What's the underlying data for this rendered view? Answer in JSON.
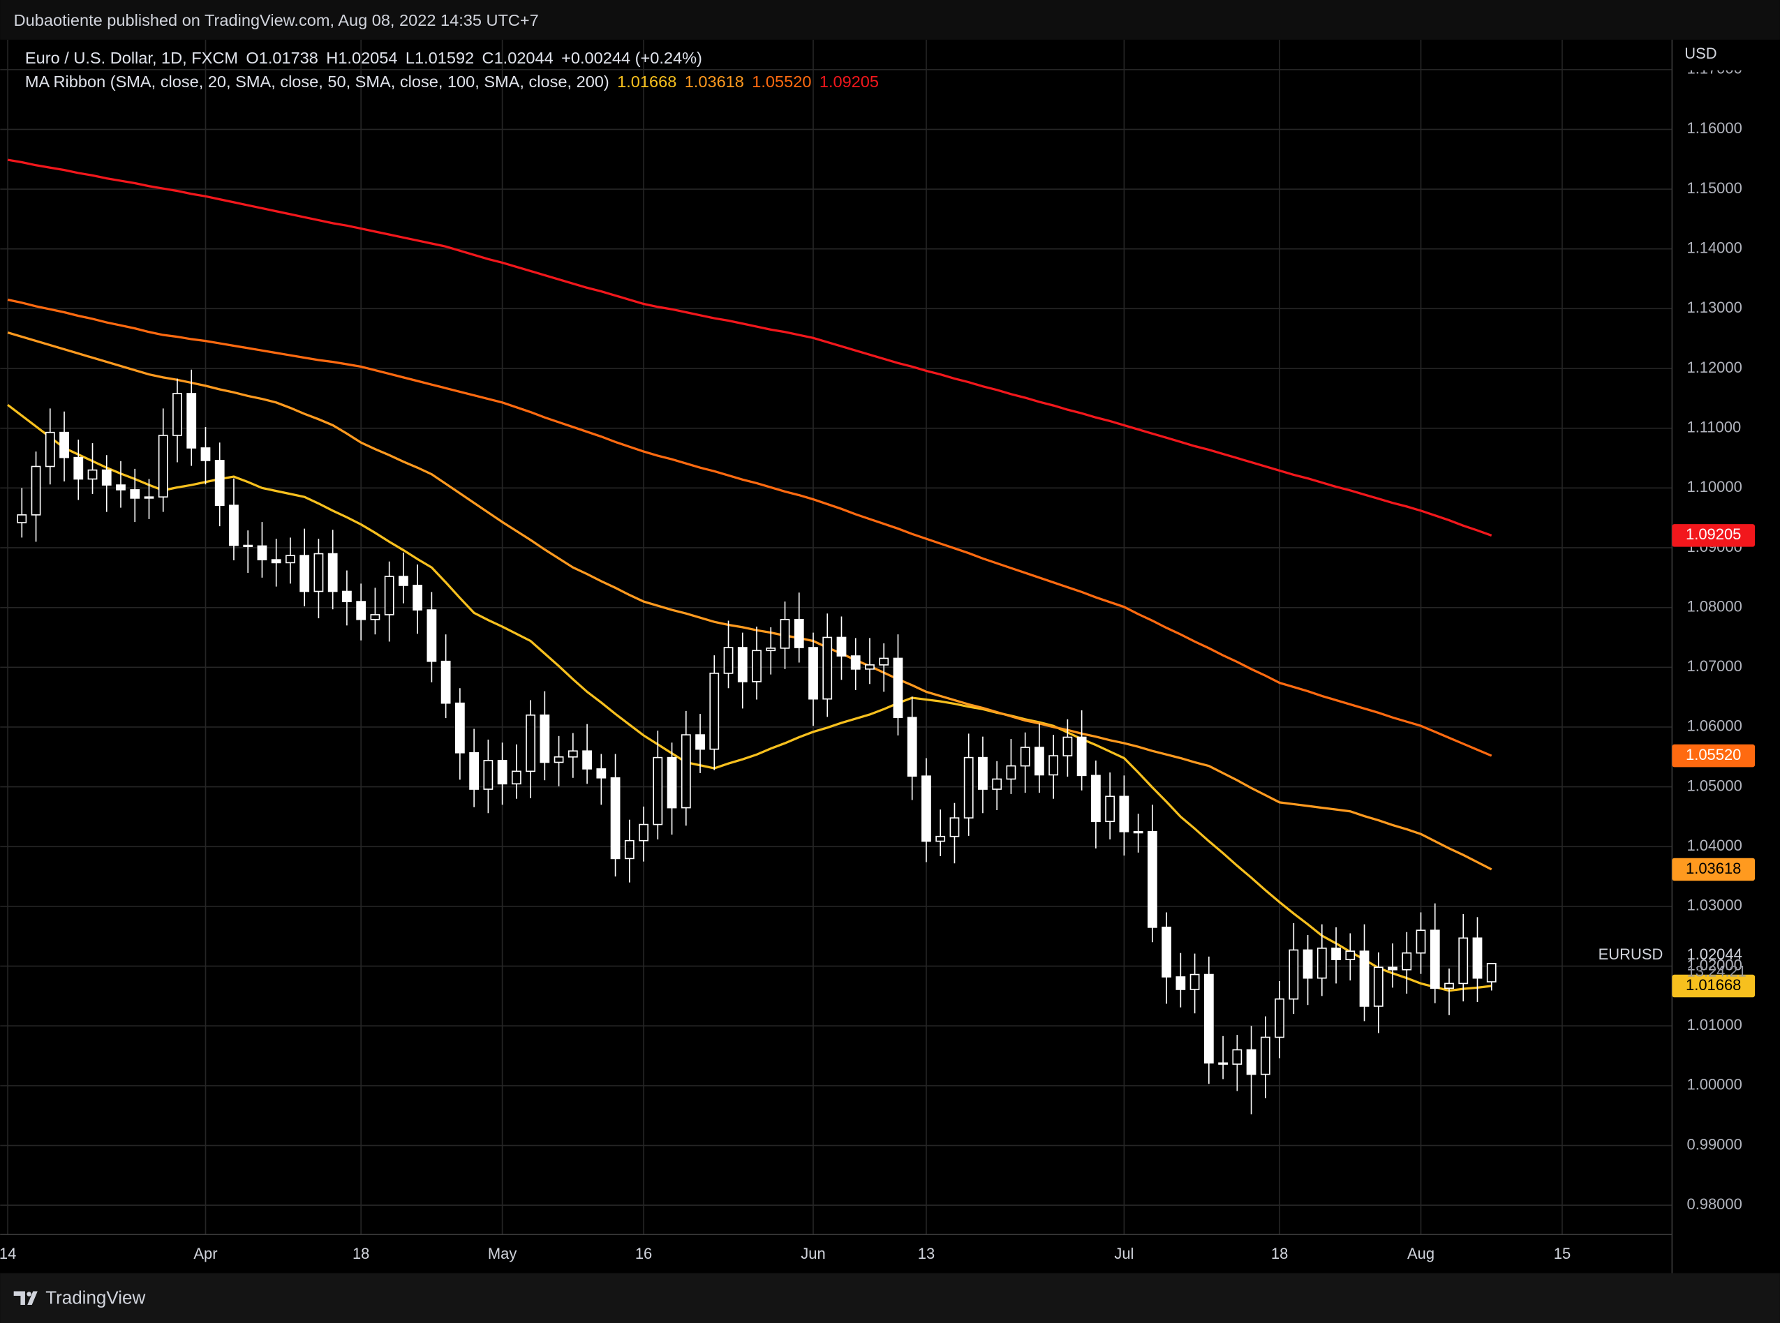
{
  "header": {
    "published": "Dubaotiente published on TradingView.com, Aug 08, 2022 14:35 UTC+7",
    "symbol": "Euro / U.S. Dollar, 1D, FXCM",
    "ohlc": [
      "O1.01738",
      "H1.02054",
      "L1.01592",
      "C1.02044",
      "+0.00244 (+0.24%)"
    ],
    "ma_ribbon": "MA Ribbon (SMA, close, 20, SMA, close, 50, SMA, close, 100, SMA, close, 200)",
    "ma_values": [
      "1.01668",
      "1.03618",
      "1.05520",
      "1.09205"
    ],
    "currency": "USD",
    "symbol_code": "EURUSD",
    "last_price": "1.02044",
    "countdown": "13:24:21",
    "brand": "TradingView"
  },
  "chart_data": {
    "type": "candlestick",
    "categories": [
      "14",
      null,
      null,
      null,
      null,
      null,
      null,
      null,
      null,
      null,
      null,
      null,
      null,
      null,
      "Apr",
      null,
      null,
      null,
      null,
      null,
      null,
      null,
      null,
      null,
      null,
      "18",
      null,
      null,
      null,
      null,
      null,
      null,
      null,
      null,
      null,
      "May",
      null,
      null,
      null,
      null,
      null,
      null,
      null,
      null,
      null,
      "16",
      null,
      null,
      null,
      null,
      null,
      null,
      null,
      null,
      null,
      null,
      null,
      "Jun",
      null,
      null,
      null,
      null,
      null,
      null,
      null,
      "13",
      null,
      null,
      null,
      null,
      null,
      null,
      null,
      null,
      null,
      null,
      null,
      null,
      null,
      "Jul",
      null,
      null,
      null,
      null,
      null,
      null,
      null,
      null,
      null,
      null,
      "18",
      null,
      null,
      null,
      null,
      null,
      null,
      null,
      null,
      null,
      "Aug",
      null,
      null,
      null,
      null,
      null,
      null,
      null,
      null,
      null,
      "15",
      null,
      null,
      null,
      null,
      null,
      null,
      null
    ],
    "open": [
      null,
      1.0942,
      1.0955,
      1.1036,
      1.1093,
      1.1051,
      1.1015,
      1.103,
      1.1005,
      1.0997,
      1.0983,
      1.0985,
      1.1088,
      1.1158,
      1.1067,
      1.1046,
      1.0971,
      1.0904,
      1.0903,
      1.088,
      1.0875,
      1.0887,
      1.0827,
      1.089,
      1.0827,
      1.081,
      1.078,
      1.0788,
      1.0852,
      1.0837,
      1.0796,
      1.071,
      1.064,
      1.0557,
      1.0496,
      1.0544,
      1.0505,
      1.0526,
      1.062,
      1.0541,
      1.055,
      1.056,
      1.053,
      1.0515,
      1.038,
      1.041,
      1.0437,
      1.0549,
      1.0465,
      1.0587,
      1.0563,
      1.069,
      1.0733,
      1.0676,
      1.0728,
      1.0732,
      1.078,
      1.0733,
      1.0647,
      1.075,
      1.0719,
      1.0697,
      1.0704,
      1.0715,
      1.0616,
      1.0518,
      1.0409,
      1.0417,
      1.0448,
      1.0549,
      1.0496,
      1.0513,
      1.0535,
      1.0566,
      1.052,
      1.0552,
      1.0583,
      1.0519,
      1.0442,
      1.0484,
      1.0425,
      1.0425,
      1.0265,
      1.0182,
      1.0161,
      1.0186,
      1.0038,
      1.0036,
      1.006,
      1.0019,
      1.0081,
      1.0145,
      1.0227,
      1.018,
      1.023,
      1.0211,
      1.0225,
      1.0133,
      1.0198,
      1.0194,
      1.0222,
      1.026,
      1.0163,
      1.0171,
      1.0247,
      1.01738,
      null,
      null,
      null,
      null,
      null,
      null,
      null,
      null,
      null,
      null,
      null,
      null
    ],
    "high": [
      null,
      1.1,
      1.1061,
      1.1133,
      1.1128,
      1.1081,
      1.1075,
      1.1055,
      1.1045,
      1.1032,
      1.1015,
      1.1133,
      1.1183,
      1.1198,
      1.1102,
      1.1076,
      1.1016,
      1.0929,
      1.0943,
      1.0915,
      1.0917,
      1.0932,
      1.0915,
      1.093,
      1.0862,
      1.084,
      1.0833,
      1.0877,
      1.0892,
      1.0872,
      1.0826,
      1.0755,
      1.0665,
      1.0597,
      1.0579,
      1.0574,
      1.0571,
      1.0645,
      1.066,
      1.0585,
      1.059,
      1.0605,
      1.0555,
      1.0555,
      1.0445,
      1.0467,
      1.0594,
      1.0574,
      1.0627,
      1.0622,
      1.072,
      1.0778,
      1.0758,
      1.0768,
      1.0767,
      1.081,
      1.0825,
      1.0758,
      1.079,
      1.0785,
      1.0749,
      1.0749,
      1.074,
      1.0755,
      1.0651,
      1.0548,
      1.0462,
      1.0473,
      1.0589,
      1.0584,
      1.0543,
      1.058,
      1.0591,
      1.0606,
      1.0587,
      1.0613,
      1.0628,
      1.0544,
      1.0524,
      1.0519,
      1.0455,
      1.047,
      1.029,
      1.0222,
      1.0221,
      1.0216,
      1.0083,
      1.0085,
      1.01,
      1.0116,
      1.0175,
      1.0272,
      1.0252,
      1.027,
      1.0265,
      1.0255,
      1.027,
      1.0223,
      1.0238,
      1.0257,
      1.029,
      1.0305,
      1.0196,
      1.0287,
      1.0282,
      1.02054,
      null,
      null,
      null,
      null,
      null,
      null,
      null,
      null,
      null,
      null,
      null,
      null
    ],
    "low": [
      null,
      1.0917,
      1.091,
      1.1006,
      1.1011,
      1.098,
      1.099,
      1.096,
      1.0967,
      1.0943,
      1.0948,
      1.096,
      1.1043,
      1.1037,
      1.1006,
      1.0936,
      1.0879,
      1.0858,
      1.085,
      1.0835,
      1.084,
      1.0802,
      1.0782,
      1.0797,
      1.077,
      1.0745,
      1.0755,
      1.0743,
      1.0807,
      1.0756,
      1.0675,
      1.0615,
      1.0512,
      1.0466,
      1.0456,
      1.047,
      1.048,
      1.0481,
      1.0511,
      1.0501,
      1.0515,
      1.0505,
      1.047,
      1.035,
      1.034,
      1.0375,
      1.0412,
      1.042,
      1.0435,
      1.0523,
      1.0528,
      1.0665,
      1.0631,
      1.0646,
      1.0688,
      1.0697,
      1.0708,
      1.0602,
      1.0617,
      1.0679,
      1.0662,
      1.0672,
      1.0659,
      1.0586,
      1.0478,
      1.0374,
      1.0384,
      1.0372,
      1.0418,
      1.0456,
      1.0461,
      1.0488,
      1.049,
      1.049,
      1.048,
      1.0517,
      1.0494,
      1.0397,
      1.0412,
      1.0385,
      1.039,
      1.024,
      1.0137,
      1.0131,
      1.0121,
      1.0003,
      1.0011,
      0.9991,
      0.9952,
      0.9979,
      1.0046,
      1.012,
      1.0135,
      1.015,
      1.0171,
      1.0176,
      1.0108,
      1.0088,
      1.0164,
      1.0154,
      1.0187,
      1.0138,
      1.0118,
      1.0141,
      1.014,
      1.01592,
      null,
      null,
      null,
      null,
      null,
      null,
      null,
      null,
      null,
      null,
      null,
      null
    ],
    "close": [
      null,
      1.0955,
      1.1036,
      1.1093,
      1.1051,
      1.1015,
      1.103,
      1.1005,
      1.0997,
      1.0983,
      1.0985,
      1.1088,
      1.1158,
      1.1067,
      1.1046,
      1.0971,
      1.0904,
      1.0903,
      1.088,
      1.0875,
      1.0887,
      1.0827,
      1.089,
      1.0827,
      1.081,
      1.078,
      1.0788,
      1.0852,
      1.0837,
      1.0796,
      1.071,
      1.064,
      1.0557,
      1.0496,
      1.0544,
      1.0505,
      1.0526,
      1.062,
      1.0541,
      1.055,
      1.056,
      1.053,
      1.0515,
      1.038,
      1.041,
      1.0437,
      1.0549,
      1.0465,
      1.0587,
      1.0563,
      1.069,
      1.0733,
      1.0676,
      1.0728,
      1.0732,
      1.078,
      1.0733,
      1.0647,
      1.075,
      1.0719,
      1.0697,
      1.0704,
      1.0715,
      1.0616,
      1.0518,
      1.0409,
      1.0417,
      1.0448,
      1.0549,
      1.0496,
      1.0513,
      1.0535,
      1.0566,
      1.052,
      1.0552,
      1.0583,
      1.0519,
      1.0442,
      1.0484,
      1.0425,
      1.0425,
      1.0265,
      1.0182,
      1.0161,
      1.0186,
      1.0038,
      1.0036,
      1.006,
      1.0019,
      1.0081,
      1.0145,
      1.0227,
      1.018,
      1.023,
      1.0211,
      1.0225,
      1.0133,
      1.0198,
      1.0194,
      1.0222,
      1.026,
      1.0163,
      1.0171,
      1.0247,
      1.018,
      1.02044,
      null,
      null,
      null,
      null,
      null,
      null,
      null,
      null,
      null,
      null,
      null,
      null
    ],
    "candle_colors": {
      "up_fill": "#000000",
      "down_fill": "#ffffff",
      "outline": "#ffffff"
    },
    "series": [
      {
        "color": "#f7c01e",
        "label_color": "#000000",
        "values": [
          1.1139,
          1.1121,
          1.1103,
          1.1085,
          1.1067,
          1.1056,
          1.1045,
          1.1034,
          1.1024,
          1.1015,
          1.1005,
          1.0996,
          1.1001,
          1.1005,
          1.101,
          1.1015,
          1.1019,
          1.101,
          1.1,
          1.0995,
          1.099,
          1.0985,
          1.0974,
          1.0962,
          1.0951,
          1.0939,
          1.0925,
          1.091,
          1.0896,
          1.0881,
          1.0867,
          1.0842,
          1.0816,
          1.0791,
          1.0779,
          1.0768,
          1.0756,
          1.0744,
          1.0723,
          1.0702,
          1.068,
          1.0659,
          1.0641,
          1.0622,
          1.0604,
          1.0586,
          1.0571,
          1.0556,
          1.0541,
          1.0536,
          1.0531,
          1.0539,
          1.0546,
          1.0554,
          1.0564,
          1.0573,
          1.0583,
          1.0592,
          1.0599,
          1.0607,
          1.0614,
          1.0621,
          1.063,
          1.064,
          1.0649,
          1.0646,
          1.0643,
          1.0639,
          1.0634,
          1.063,
          1.0624,
          1.0619,
          1.0613,
          1.0608,
          1.0602,
          1.0591,
          1.058,
          1.057,
          1.0559,
          1.0548,
          1.0524,
          1.0499,
          1.0475,
          1.045,
          1.043,
          1.0409,
          1.0389,
          1.0368,
          1.0348,
          1.0327,
          1.0307,
          1.0288,
          1.027,
          1.0251,
          1.0238,
          1.0224,
          1.0211,
          1.0197,
          1.0188,
          1.018,
          1.0171,
          1.0165,
          1.0159,
          1.0162,
          1.0164,
          1.01668,
          null,
          null,
          null,
          null,
          null,
          null,
          null,
          null,
          null,
          null,
          null,
          null
        ]
      },
      {
        "color": "#ff9a1f",
        "label_color": "#000000",
        "values": [
          1.126,
          1.1253,
          1.1246,
          1.1239,
          1.1232,
          1.1225,
          1.1218,
          1.1211,
          1.1204,
          1.1197,
          1.119,
          1.1185,
          1.1181,
          1.1176,
          1.1171,
          1.1165,
          1.116,
          1.1154,
          1.1149,
          1.1143,
          1.1134,
          1.1124,
          1.1115,
          1.1105,
          1.1091,
          1.1076,
          1.1065,
          1.1055,
          1.1044,
          1.1034,
          1.1023,
          1.1007,
          1.0991,
          1.0975,
          1.0959,
          1.0943,
          1.0928,
          1.0913,
          1.0897,
          1.0882,
          1.0867,
          1.0856,
          1.0844,
          1.0833,
          1.0821,
          1.081,
          1.0803,
          1.0796,
          1.079,
          1.0783,
          1.0776,
          1.0771,
          1.0767,
          1.0762,
          1.0758,
          1.0753,
          1.0749,
          1.0744,
          1.0733,
          1.0723,
          1.0712,
          1.0702,
          1.0691,
          1.068,
          1.067,
          1.0659,
          1.0652,
          1.0645,
          1.0638,
          1.0632,
          1.0625,
          1.0618,
          1.0611,
          1.0606,
          1.06,
          1.0595,
          1.0589,
          1.0584,
          1.0578,
          1.0573,
          1.0567,
          1.056,
          1.0554,
          1.0548,
          1.0541,
          1.0535,
          1.0523,
          1.0511,
          1.0498,
          1.0486,
          1.0474,
          1.0471,
          1.0468,
          1.0465,
          1.0462,
          1.0459,
          1.0451,
          1.0444,
          1.0436,
          1.0429,
          1.0421,
          1.0409,
          1.0397,
          1.0386,
          1.0374,
          1.03618,
          null,
          null,
          null,
          null,
          null,
          null,
          null,
          null,
          null,
          null,
          null,
          null
        ]
      },
      {
        "color": "#ff6a10",
        "label_color": "#ffffff",
        "values": [
          1.1315,
          1.131,
          1.1304,
          1.1299,
          1.1294,
          1.1288,
          1.1283,
          1.1277,
          1.1272,
          1.1267,
          1.1261,
          1.1256,
          1.1253,
          1.1249,
          1.1246,
          1.1242,
          1.1238,
          1.1234,
          1.123,
          1.1226,
          1.1222,
          1.1218,
          1.1214,
          1.1211,
          1.1207,
          1.1203,
          1.1197,
          1.1191,
          1.1185,
          1.1179,
          1.1173,
          1.1167,
          1.1161,
          1.1155,
          1.1149,
          1.1143,
          1.1135,
          1.1127,
          1.1118,
          1.111,
          1.1102,
          1.1094,
          1.1086,
          1.1077,
          1.1069,
          1.1061,
          1.1054,
          1.1048,
          1.1041,
          1.1034,
          1.1028,
          1.1021,
          1.1014,
          1.1008,
          1.1001,
          1.0994,
          1.0988,
          1.0981,
          1.0973,
          1.0965,
          1.0956,
          1.0948,
          1.094,
          1.0932,
          1.0923,
          1.0915,
          1.0907,
          1.0899,
          1.0891,
          1.0882,
          1.0874,
          1.0866,
          1.0858,
          1.085,
          1.0842,
          1.0834,
          1.0826,
          1.0817,
          1.0809,
          1.0801,
          1.0789,
          1.0778,
          1.0766,
          1.0755,
          1.0743,
          1.0732,
          1.072,
          1.0709,
          1.0697,
          1.0686,
          1.0674,
          1.0667,
          1.066,
          1.0652,
          1.0645,
          1.0638,
          1.0631,
          1.0624,
          1.0616,
          1.0609,
          1.0602,
          1.0592,
          1.0582,
          1.0572,
          1.0562,
          1.0552,
          null,
          null,
          null,
          null,
          null,
          null,
          null,
          null,
          null,
          null,
          null,
          null
        ]
      },
      {
        "color": "#f2171c",
        "label_color": "#ffffff",
        "values": [
          1.1549,
          1.1545,
          1.154,
          1.1536,
          1.1532,
          1.1527,
          1.1523,
          1.1518,
          1.1514,
          1.151,
          1.1505,
          1.1501,
          1.1497,
          1.1492,
          1.1488,
          1.1483,
          1.1478,
          1.1473,
          1.1468,
          1.1463,
          1.1458,
          1.1453,
          1.1448,
          1.1443,
          1.1439,
          1.1434,
          1.1429,
          1.1424,
          1.1419,
          1.1414,
          1.1409,
          1.1404,
          1.1397,
          1.139,
          1.1383,
          1.1377,
          1.137,
          1.1363,
          1.1356,
          1.1349,
          1.1342,
          1.1335,
          1.1329,
          1.1322,
          1.1315,
          1.1308,
          1.1303,
          1.1299,
          1.1294,
          1.1289,
          1.1284,
          1.128,
          1.1275,
          1.127,
          1.1265,
          1.1261,
          1.1256,
          1.1251,
          1.1244,
          1.1237,
          1.123,
          1.1223,
          1.1216,
          1.1209,
          1.1203,
          1.1196,
          1.119,
          1.1183,
          1.1177,
          1.117,
          1.1164,
          1.1157,
          1.1151,
          1.1144,
          1.1138,
          1.1131,
          1.1125,
          1.1118,
          1.1112,
          1.1105,
          1.1098,
          1.1091,
          1.1084,
          1.1077,
          1.107,
          1.1064,
          1.1057,
          1.105,
          1.1043,
          1.1036,
          1.1029,
          1.1022,
          1.1016,
          1.1009,
          1.1002,
          1.0996,
          1.0989,
          1.0982,
          1.0975,
          1.0969,
          1.0962,
          1.0954,
          1.0946,
          1.0937,
          1.0929,
          1.09205,
          null,
          null,
          null,
          null,
          null,
          null,
          null,
          null,
          null,
          null,
          null,
          null
        ]
      }
    ],
    "ylim": [
      0.9751,
      1.175
    ],
    "yticks": [
      {
        "value": 0.98,
        "label": "0.98000"
      },
      {
        "value": 0.99,
        "label": "0.99000"
      },
      {
        "value": 1.0,
        "label": "1.00000"
      },
      {
        "value": 1.01,
        "label": "1.01000"
      },
      {
        "value": 1.02,
        "label": "1.02000"
      },
      {
        "value": 1.03,
        "label": "1.03000"
      },
      {
        "value": 1.04,
        "label": "1.04000"
      },
      {
        "value": 1.05,
        "label": "1.05000"
      },
      {
        "value": 1.06,
        "label": "1.06000"
      },
      {
        "value": 1.07,
        "label": "1.07000"
      },
      {
        "value": 1.08,
        "label": "1.08000"
      },
      {
        "value": 1.09,
        "label": "1.09000"
      },
      {
        "value": 1.1,
        "label": "1.10000"
      },
      {
        "value": 1.11,
        "label": "1.11000"
      },
      {
        "value": 1.12,
        "label": "1.12000"
      },
      {
        "value": 1.13,
        "label": "1.13000"
      },
      {
        "value": 1.14,
        "label": "1.14000"
      },
      {
        "value": 1.15,
        "label": "1.15000"
      },
      {
        "value": 1.16,
        "label": "1.16000"
      },
      {
        "value": 1.17,
        "label": "1.17000"
      }
    ],
    "grid": true
  }
}
